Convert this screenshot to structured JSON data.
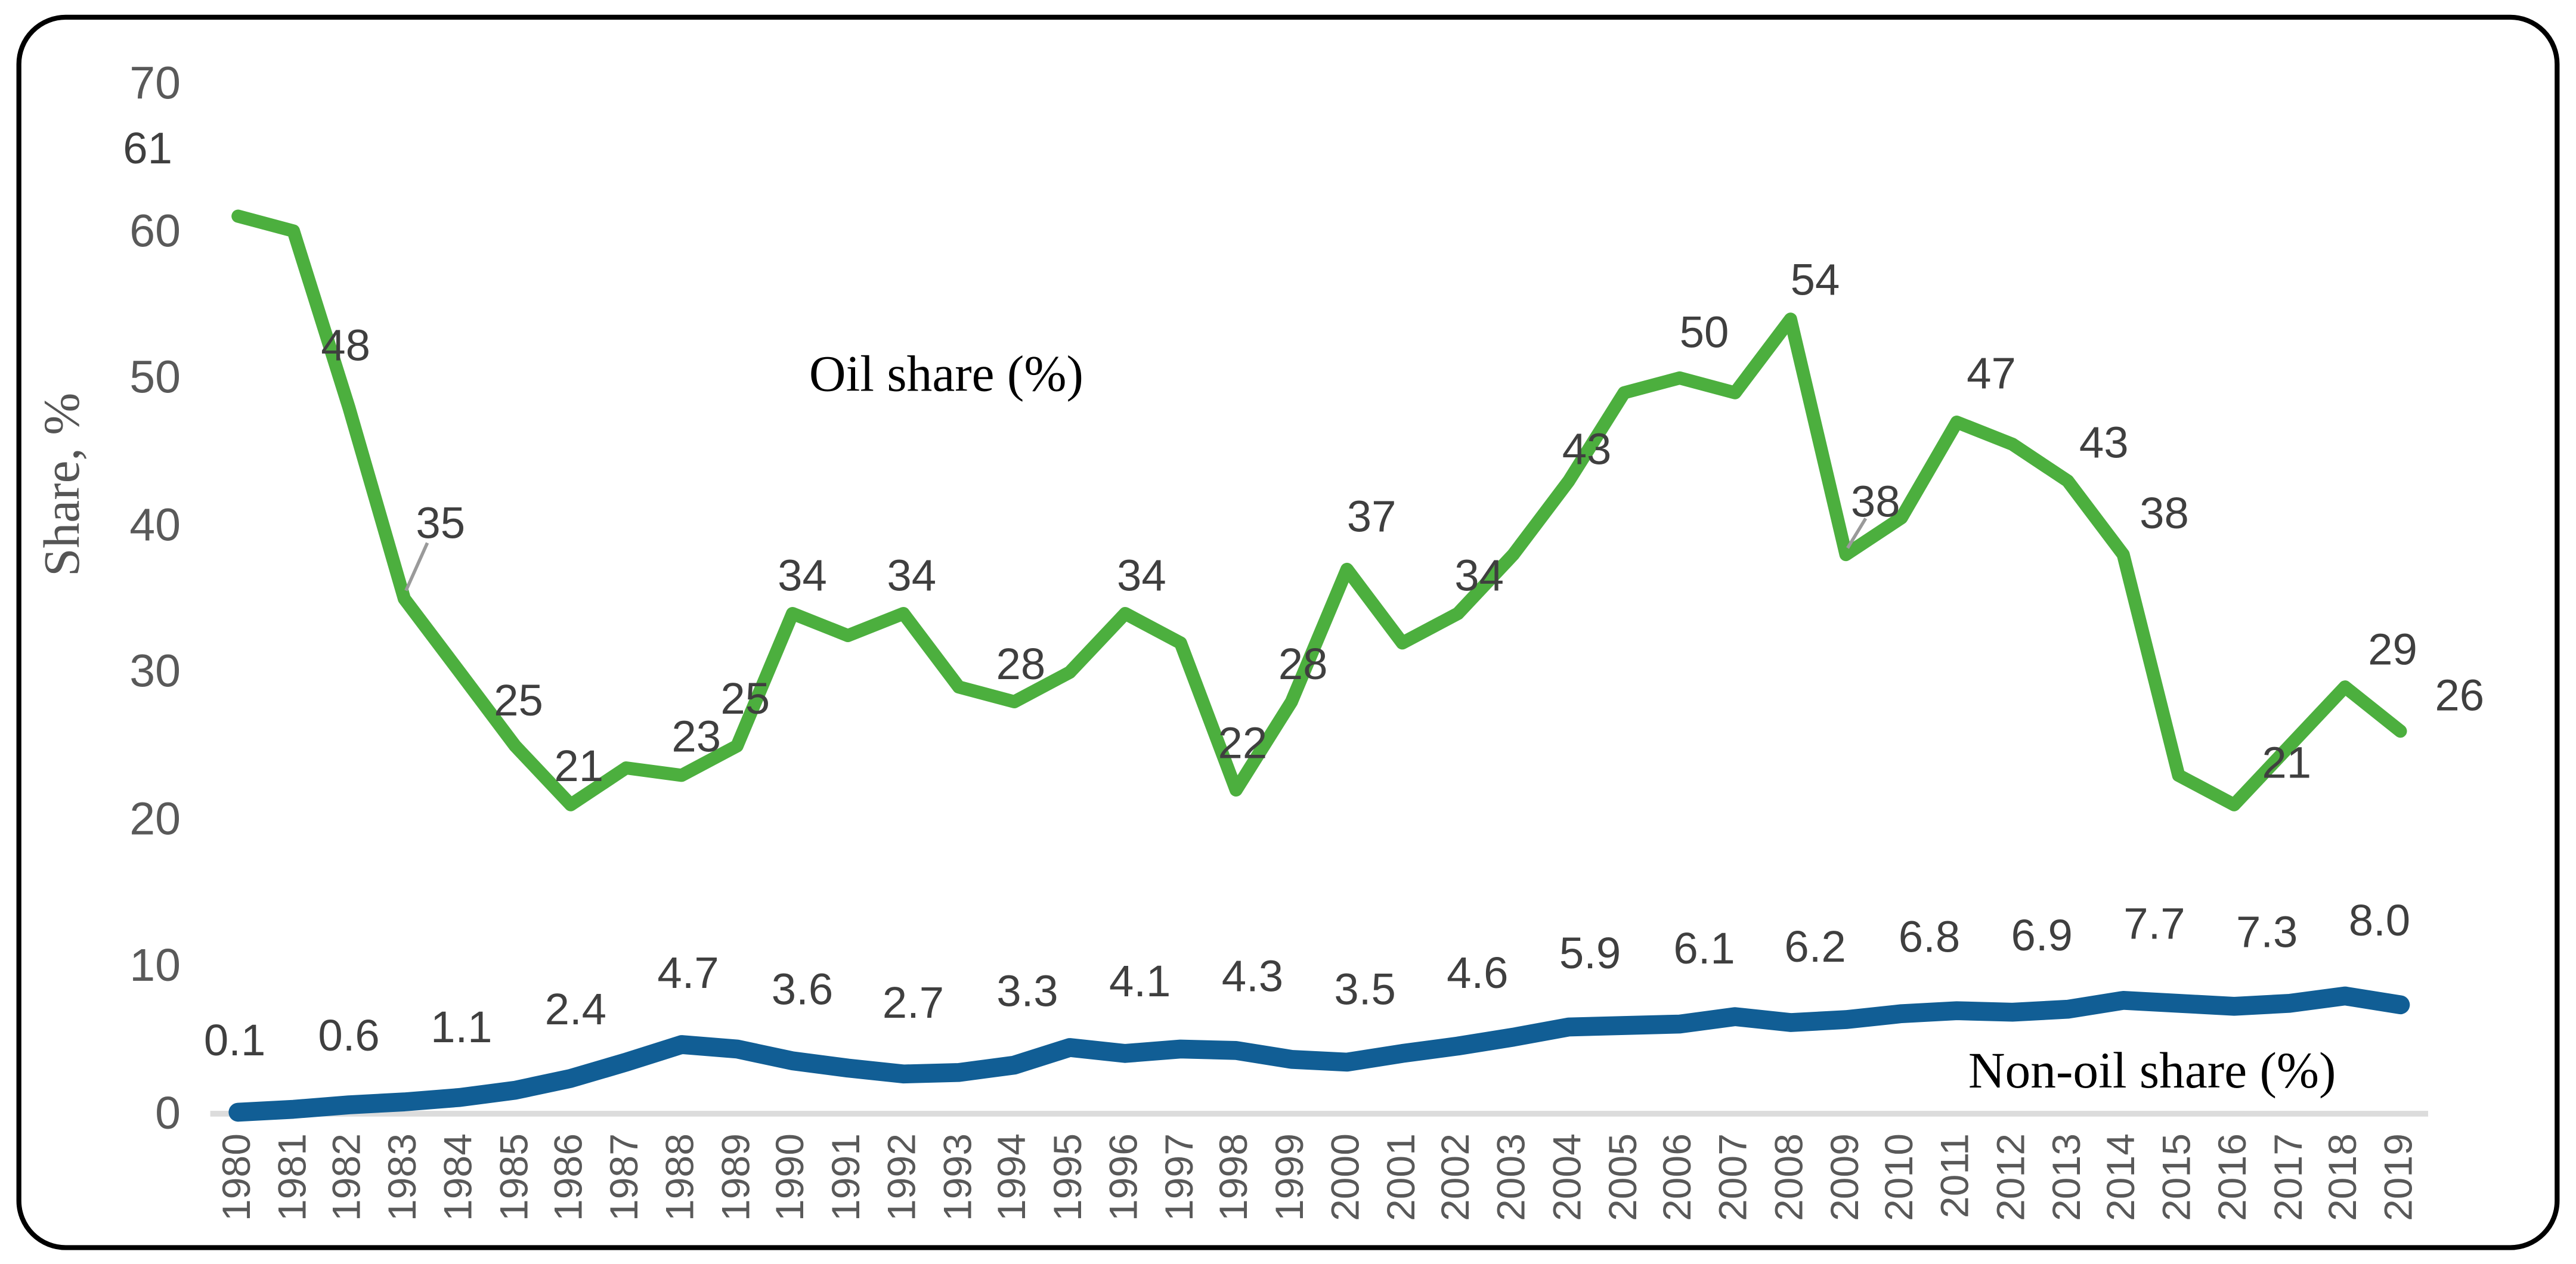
{
  "colors": {
    "oil": "#4CAF3E",
    "nonoil": "#115E95",
    "data_label": "#3F3F3F",
    "tick": "#595959",
    "axis_line": "#DCDCDC",
    "frame": "#000000",
    "leader": "#9A9A9A"
  },
  "chart_data": {
    "type": "line",
    "title": "",
    "xlabel": "",
    "ylabel": "Share, %",
    "ylim": [
      0,
      70
    ],
    "yticks": [
      0,
      10,
      20,
      30,
      40,
      50,
      60,
      70
    ],
    "grid": false,
    "legend_position": "inline-text-labels",
    "categories": [
      "1980",
      "1981",
      "1982",
      "1983",
      "1984",
      "1985",
      "1986",
      "1987",
      "1988",
      "1989",
      "1990",
      "1991",
      "1992",
      "1993",
      "1994",
      "1995",
      "1996",
      "1997",
      "1998",
      "1999",
      "2000",
      "2001",
      "2002",
      "2003",
      "2004",
      "2005",
      "2006",
      "2007",
      "2008",
      "2009",
      "2010",
      "2011",
      "2012",
      "2013",
      "2014",
      "2015",
      "2016",
      "2017",
      "2018",
      "2019"
    ],
    "series": [
      {
        "name": "Oil share (%)",
        "color": "#4CAF3E",
        "values": [
          61,
          60,
          48,
          35,
          30,
          25,
          21,
          23.5,
          23,
          25,
          34,
          32.5,
          34,
          29,
          28,
          30,
          34,
          32,
          22,
          28,
          37,
          32,
          34,
          38,
          43,
          49,
          50,
          49,
          54,
          38,
          40.5,
          47,
          45.5,
          43,
          38,
          23,
          21,
          25,
          29,
          26
        ],
        "labels": [
          {
            "xi": 0,
            "text": "61",
            "dx": -55,
            "dy": -41
          },
          {
            "xi": 2,
            "text": "48",
            "dx": -2,
            "dy": -37
          },
          {
            "xi": 3,
            "text": "35",
            "dx": 22,
            "dy": -46,
            "leader": [
              14,
              -34,
              1,
              -5
            ]
          },
          {
            "xi": 5,
            "text": "25",
            "dx": 2,
            "dy": -27
          },
          {
            "xi": 6,
            "text": "21",
            "dx": 5,
            "dy": -23
          },
          {
            "xi": 8,
            "text": "23",
            "dx": 9,
            "dy": -23
          },
          {
            "xi": 9,
            "text": "25",
            "dx": 5,
            "dy": -28
          },
          {
            "xi": 10,
            "text": "34",
            "dx": 6,
            "dy": -22
          },
          {
            "xi": 12,
            "text": "34",
            "dx": 5,
            "dy": -22
          },
          {
            "xi": 14,
            "text": "28",
            "dx": 4,
            "dy": -22
          },
          {
            "xi": 16,
            "text": "34",
            "dx": 10,
            "dy": -22
          },
          {
            "xi": 18,
            "text": "22",
            "dx": 4,
            "dy": -28
          },
          {
            "xi": 19,
            "text": "28",
            "dx": 7,
            "dy": -22
          },
          {
            "xi": 20,
            "text": "37",
            "dx": 15,
            "dy": -32
          },
          {
            "xi": 22,
            "text": "34",
            "dx": 13,
            "dy": -22
          },
          {
            "xi": 24,
            "text": "43",
            "dx": 11,
            "dy": -19
          },
          {
            "xi": 26,
            "text": "50",
            "dx": 15,
            "dy": -27
          },
          {
            "xi": 28,
            "text": "54",
            "dx": 15,
            "dy": -23
          },
          {
            "xi": 29,
            "text": "38",
            "dx": 18,
            "dy": -32,
            "leader": [
              12,
              -22,
              1,
              -4
            ]
          },
          {
            "xi": 31,
            "text": "47",
            "dx": 21,
            "dy": -29
          },
          {
            "xi": 33,
            "text": "43",
            "dx": 22,
            "dy": -23
          },
          {
            "xi": 34,
            "text": "38",
            "dx": 25,
            "dy": -25
          },
          {
            "xi": 36,
            "text": "21",
            "dx": 32,
            "dy": -25
          },
          {
            "xi": 38,
            "text": "29",
            "dx": 29,
            "dy": -22
          },
          {
            "xi": 39,
            "text": "26",
            "dx": 36,
            "dy": -21
          }
        ]
      },
      {
        "name": "Non-oil share (%)",
        "color": "#115E95",
        "values": [
          0.1,
          0.3,
          0.6,
          0.8,
          1.1,
          1.6,
          2.4,
          3.5,
          4.7,
          4.4,
          3.6,
          3.1,
          2.7,
          2.8,
          3.3,
          4.5,
          4.1,
          4.4,
          4.3,
          3.7,
          3.5,
          4.1,
          4.6,
          5.2,
          5.9,
          6.0,
          6.1,
          6.6,
          6.2,
          6.4,
          6.8,
          7.0,
          6.9,
          7.1,
          7.7,
          7.5,
          7.3,
          7.5,
          8.0,
          7.4
        ],
        "labels": [
          {
            "xi": 0,
            "text": "0.1",
            "dx": -2,
            "dy": -43
          },
          {
            "xi": 2,
            "text": "0.6",
            "dx": 0,
            "dy": -42
          },
          {
            "xi": 4,
            "text": "1.1",
            "dx": 1,
            "dy": -42
          },
          {
            "xi": 6,
            "text": "2.4",
            "dx": 3,
            "dy": -42
          },
          {
            "xi": 8,
            "text": "4.7",
            "dx": 4,
            "dy": -43
          },
          {
            "xi": 10,
            "text": "3.6",
            "dx": 6,
            "dy": -43
          },
          {
            "xi": 12,
            "text": "2.7",
            "dx": 6,
            "dy": -43
          },
          {
            "xi": 14,
            "text": "3.3",
            "dx": 8,
            "dy": -44
          },
          {
            "xi": 16,
            "text": "4.1",
            "dx": 9,
            "dy": -43
          },
          {
            "xi": 18,
            "text": "4.3",
            "dx": 10,
            "dy": -44
          },
          {
            "xi": 20,
            "text": "3.5",
            "dx": 11,
            "dy": -44
          },
          {
            "xi": 22,
            "text": "4.6",
            "dx": 12,
            "dy": -44
          },
          {
            "xi": 24,
            "text": "5.9",
            "dx": 13,
            "dy": -44
          },
          {
            "xi": 26,
            "text": "6.1",
            "dx": 15,
            "dy": -45
          },
          {
            "xi": 28,
            "text": "6.2",
            "dx": 15,
            "dy": -45
          },
          {
            "xi": 30,
            "text": "6.8",
            "dx": 17,
            "dy": -46
          },
          {
            "xi": 32,
            "text": "6.9",
            "dx": 18,
            "dy": -46
          },
          {
            "xi": 34,
            "text": "7.7",
            "dx": 19,
            "dy": -46
          },
          {
            "xi": 36,
            "text": "7.3",
            "dx": 20,
            "dy": -45
          },
          {
            "xi": 38,
            "text": "8.0",
            "dx": 21,
            "dy": -45
          }
        ]
      }
    ]
  }
}
